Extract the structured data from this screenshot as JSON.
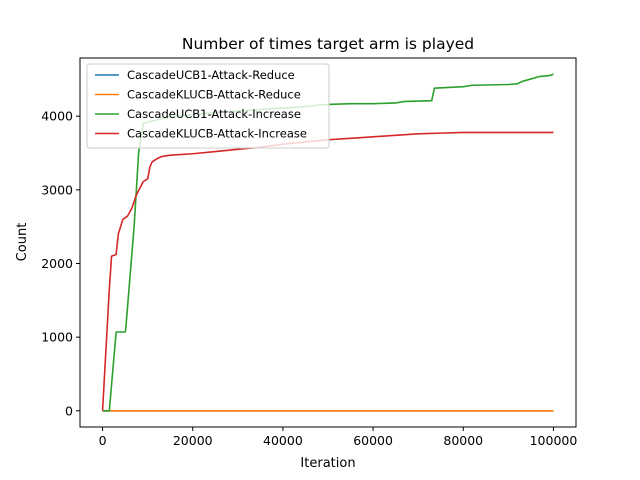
{
  "chart_data": {
    "type": "line",
    "title": "Number of times target arm is played",
    "xlabel": "Iteration",
    "ylabel": "Count",
    "xlim": [
      -5000,
      105000
    ],
    "ylim": [
      -220,
      4790
    ],
    "xticks": [
      0,
      20000,
      40000,
      60000,
      80000,
      100000
    ],
    "yticks": [
      0,
      1000,
      2000,
      3000,
      4000
    ],
    "grid": false,
    "legend_position": "top-left",
    "series": [
      {
        "name": "CascadeUCB1-Attack-Reduce",
        "color": "#1f77b4",
        "x": [
          0,
          100000
        ],
        "y": [
          0,
          0
        ]
      },
      {
        "name": "CascadeKLUCB-Attack-Reduce",
        "color": "#ff7f0e",
        "x": [
          0,
          100000
        ],
        "y": [
          0,
          0
        ]
      },
      {
        "name": "CascadeUCB1-Attack-Increase",
        "color": "#2ca02c",
        "x": [
          0,
          1500,
          3000,
          3050,
          5000,
          5100,
          7000,
          8000,
          9000,
          10000,
          12000,
          15000,
          20000,
          25000,
          30000,
          35000,
          40000,
          45000,
          48000,
          50000,
          55000,
          60000,
          65000,
          67000,
          73000,
          73600,
          80000,
          82000,
          90000,
          92000,
          93000,
          97000,
          99000,
          100000
        ],
        "y": [
          0,
          0,
          1060,
          1070,
          1070,
          1080,
          2500,
          3500,
          3900,
          3920,
          3950,
          3990,
          4020,
          4050,
          4070,
          4090,
          4110,
          4130,
          4150,
          4160,
          4170,
          4170,
          4180,
          4200,
          4210,
          4380,
          4400,
          4420,
          4430,
          4440,
          4470,
          4540,
          4550,
          4570
        ]
      },
      {
        "name": "CascadeKLUCB-Attack-Increase",
        "color": "#d62728",
        "x": [
          0,
          1500,
          2000,
          3000,
          3500,
          4500,
          5500,
          6500,
          7500,
          8500,
          9000,
          10000,
          10500,
          11000,
          12000,
          13000,
          15000,
          20000,
          25000,
          30000,
          35000,
          40000,
          45000,
          50000,
          55000,
          60000,
          65000,
          70000,
          75000,
          80000,
          90000,
          100000
        ],
        "y": [
          0,
          1650,
          2100,
          2120,
          2400,
          2600,
          2640,
          2750,
          2930,
          3050,
          3110,
          3150,
          3310,
          3380,
          3420,
          3450,
          3470,
          3490,
          3520,
          3550,
          3580,
          3620,
          3650,
          3680,
          3700,
          3720,
          3740,
          3760,
          3770,
          3780,
          3780,
          3780
        ]
      }
    ]
  }
}
